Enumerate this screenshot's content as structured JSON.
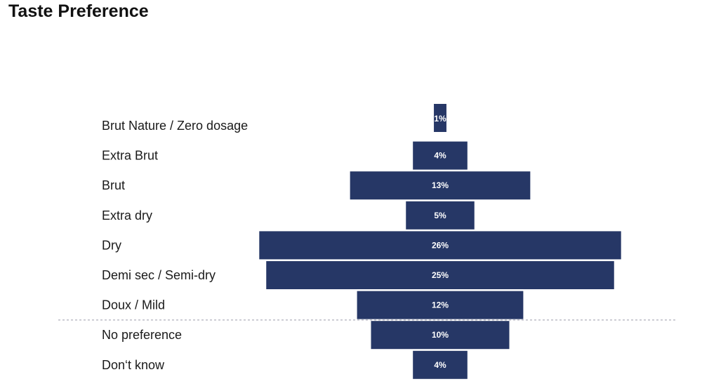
{
  "title": "Taste Preference",
  "colors": {
    "bar": "#263766",
    "bar_stroke": "#ffffff",
    "separator": "#9a9aaa"
  },
  "chart_data": {
    "type": "bar",
    "orientation": "horizontal-centered",
    "title": "Taste Preference",
    "categories": [
      "Brut Nature / Zero dosage",
      "Extra Brut",
      "Brut",
      "Extra dry",
      "Dry",
      "Demi sec / Semi-dry",
      "Doux / Mild",
      "No preference",
      "Don‘t know"
    ],
    "values": [
      1,
      4,
      13,
      5,
      26,
      25,
      12,
      10,
      4
    ],
    "value_labels": [
      "1%",
      "4%",
      "13%",
      "5%",
      "26%",
      "25%",
      "12%",
      "10%",
      "4%"
    ],
    "unit": "%",
    "separator_after_index": 6,
    "grid": false,
    "legend": "none"
  }
}
